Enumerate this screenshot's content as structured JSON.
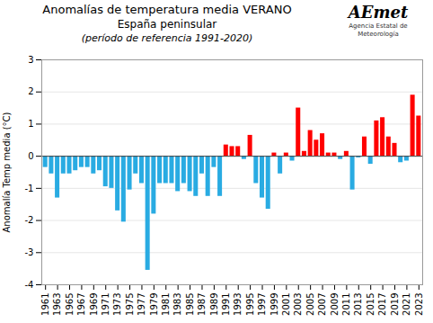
{
  "chart_data": {
    "type": "bar",
    "title": "Anomalías de temperatura media VERANO",
    "subtitle": "España peninsular",
    "annotations": [
      "(período de referencia 1991-2020)",
      "AEmet",
      "Agencia Estatal de Meteorología"
    ],
    "ylabel": "Anomalía Temp media (°C)",
    "categories": [
      1961,
      null,
      1963,
      null,
      1965,
      null,
      1967,
      null,
      1969,
      null,
      1971,
      null,
      1973,
      null,
      1975,
      null,
      1977,
      null,
      1979,
      null,
      1981,
      null,
      1983,
      null,
      1985,
      null,
      1987,
      null,
      1989,
      null,
      1991,
      null,
      1993,
      null,
      1995,
      null,
      1997,
      null,
      1999,
      null,
      2001,
      null,
      2003,
      null,
      2005,
      null,
      2007,
      null,
      2009,
      null,
      2011,
      null,
      2013,
      null,
      2015,
      null,
      2017,
      null,
      2019,
      null,
      2021,
      null,
      2023
    ],
    "values": [
      -0.35,
      -0.55,
      -1.3,
      -0.55,
      -0.55,
      -0.45,
      -0.35,
      -0.35,
      -0.55,
      -0.45,
      -0.95,
      -1.0,
      -1.7,
      -2.05,
      -1.05,
      -0.55,
      -0.85,
      -3.55,
      -1.8,
      -0.85,
      -0.85,
      -0.85,
      -1.1,
      -0.85,
      -1.1,
      -1.25,
      -0.55,
      -1.25,
      -0.35,
      -1.25,
      0.35,
      0.3,
      0.3,
      -0.1,
      0.65,
      -0.85,
      -1.3,
      -1.65,
      0.1,
      -0.55,
      0.1,
      -0.15,
      1.5,
      0.15,
      0.8,
      0.5,
      0.7,
      0.1,
      0.1,
      -0.1,
      0.15,
      -1.05,
      -0.05,
      0.6,
      -0.25,
      1.1,
      1.2,
      0.6,
      0.4,
      -0.2,
      -0.15,
      1.9,
      1.25
    ],
    "colors": [
      "#29ABE2",
      "#29ABE2",
      "#29ABE2",
      "#29ABE2",
      "#29ABE2",
      "#29ABE2",
      "#29ABE2",
      "#29ABE2",
      "#29ABE2",
      "#29ABE2",
      "#29ABE2",
      "#29ABE2",
      "#29ABE2",
      "#29ABE2",
      "#29ABE2",
      "#29ABE2",
      "#29ABE2",
      "#29ABE2",
      "#29ABE2",
      "#29ABE2",
      "#29ABE2",
      "#29ABE2",
      "#29ABE2",
      "#29ABE2",
      "#29ABE2",
      "#29ABE2",
      "#29ABE2",
      "#29ABE2",
      "#29ABE2",
      "#29ABE2",
      "#FF0000",
      "#FF0000",
      "#FF0000",
      "#29ABE2",
      "#FF0000",
      "#29ABE2",
      "#29ABE2",
      "#29ABE2",
      "#FF0000",
      "#29ABE2",
      "#FF0000",
      "#29ABE2",
      "#FF0000",
      "#FF0000",
      "#FF0000",
      "#FF0000",
      "#FF0000",
      "#FF0000",
      "#FF0000",
      "#29ABE2",
      "#FF0000",
      "#29ABE2",
      "#29ABE2",
      "#FF0000",
      "#29ABE2",
      "#FF0000",
      "#FF0000",
      "#FF0000",
      "#FF0000",
      "#29ABE2",
      "#29ABE2",
      "#FF0000",
      "#FF0000"
    ],
    "ylim": [
      -4.0,
      3.0
    ],
    "yticks": [
      -4,
      -3,
      -2,
      -1,
      0,
      1,
      2,
      3
    ],
    "grid": true
  }
}
